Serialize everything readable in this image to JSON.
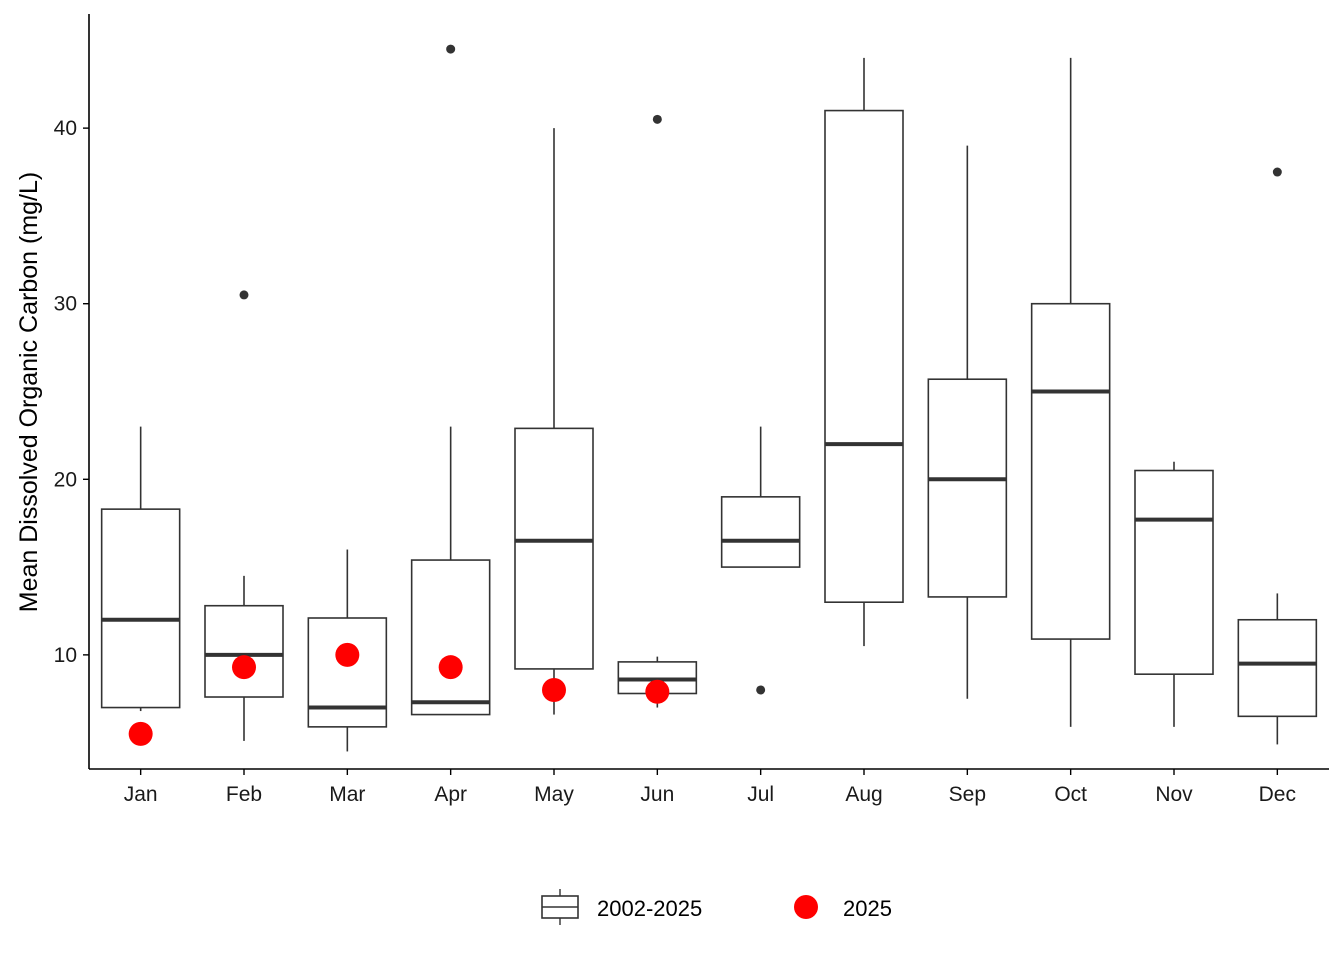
{
  "chart_data": {
    "type": "box",
    "ylabel": "Mean Dissolved Organic Carbon (mg/L)",
    "xlabel": "",
    "ylim": [
      3.5,
      46.5
    ],
    "yticks": [
      10,
      20,
      30,
      40
    ],
    "grid": false,
    "legend_position": "bottom",
    "categories": [
      "Jan",
      "Feb",
      "Mar",
      "Apr",
      "May",
      "Jun",
      "Jul",
      "Aug",
      "Sep",
      "Oct",
      "Nov",
      "Dec"
    ],
    "series": [
      {
        "name": "2002-2025",
        "type": "boxplot",
        "boxes": [
          {
            "min": 6.8,
            "q1": 7.0,
            "median": 12.0,
            "q3": 18.3,
            "max": 23.0,
            "outliers": []
          },
          {
            "min": 5.1,
            "q1": 7.6,
            "median": 10.0,
            "q3": 12.8,
            "max": 14.5,
            "outliers": [
              30.5
            ]
          },
          {
            "min": 4.5,
            "q1": 5.9,
            "median": 7.0,
            "q3": 12.1,
            "max": 16.0,
            "outliers": []
          },
          {
            "min": 6.6,
            "q1": 6.6,
            "median": 7.3,
            "q3": 15.4,
            "max": 23.0,
            "outliers": [
              44.5
            ]
          },
          {
            "min": 6.6,
            "q1": 9.2,
            "median": 16.5,
            "q3": 22.9,
            "max": 40.0,
            "outliers": []
          },
          {
            "min": 7.0,
            "q1": 7.8,
            "median": 8.6,
            "q3": 9.6,
            "max": 9.9,
            "outliers": [
              40.5
            ]
          },
          {
            "min": 15.0,
            "q1": 15.0,
            "median": 16.5,
            "q3": 19.0,
            "max": 23.0,
            "outliers": [
              8.0
            ]
          },
          {
            "min": 10.5,
            "q1": 13.0,
            "median": 22.0,
            "q3": 41.0,
            "max": 44.0,
            "outliers": []
          },
          {
            "min": 7.5,
            "q1": 13.3,
            "median": 20.0,
            "q3": 25.7,
            "max": 39.0,
            "outliers": []
          },
          {
            "min": 5.9,
            "q1": 10.9,
            "median": 25.0,
            "q3": 30.0,
            "max": 44.0,
            "outliers": []
          },
          {
            "min": 5.9,
            "q1": 8.9,
            "median": 17.7,
            "q3": 20.5,
            "max": 21.0,
            "outliers": []
          },
          {
            "min": 4.9,
            "q1": 6.5,
            "median": 9.5,
            "q3": 12.0,
            "max": 13.5,
            "outliers": [
              37.5
            ]
          }
        ]
      },
      {
        "name": "2025",
        "type": "points",
        "color": "#ff0000",
        "values": [
          5.5,
          9.3,
          10.0,
          9.3,
          8.0,
          7.9,
          null,
          null,
          null,
          null,
          null,
          null
        ]
      }
    ]
  },
  "colors": {
    "box_stroke": "#333333",
    "axis": "#000000",
    "point_2025": "#ff0000",
    "outlier": "#333333"
  }
}
